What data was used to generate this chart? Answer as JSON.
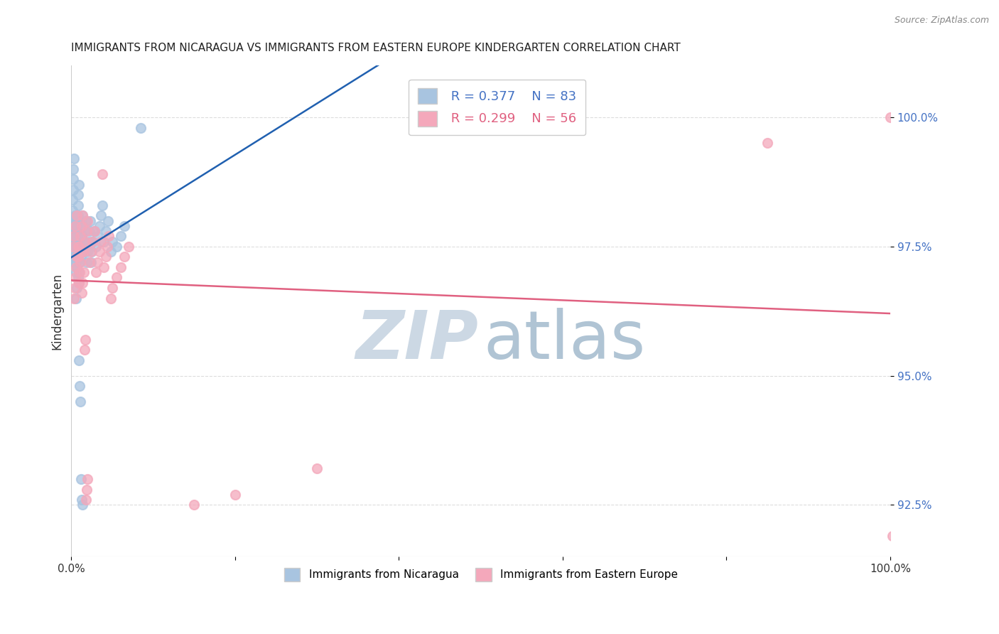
{
  "title": "IMMIGRANTS FROM NICARAGUA VS IMMIGRANTS FROM EASTERN EUROPE KINDERGARTEN CORRELATION CHART",
  "source": "Source: ZipAtlas.com",
  "ylabel": "Kindergarten",
  "ytick_vals": [
    92.5,
    95.0,
    97.5,
    100.0
  ],
  "xlim": [
    0.0,
    100.0
  ],
  "ylim": [
    91.5,
    101.0
  ],
  "blue_R": 0.377,
  "blue_N": 83,
  "pink_R": 0.299,
  "pink_N": 56,
  "blue_color": "#a8c4e0",
  "pink_color": "#f4a8bb",
  "blue_line_color": "#2060b0",
  "pink_line_color": "#e06080",
  "blue_legend_color": "#4472c4",
  "pink_legend_color": "#e06080",
  "watermark_zip_color": "#ccd8e4",
  "watermark_atlas_color": "#b0c4d4",
  "background_color": "#ffffff",
  "grid_color": "#dddddd",
  "blue_x": [
    0.05,
    0.08,
    0.1,
    0.12,
    0.15,
    0.18,
    0.2,
    0.22,
    0.25,
    0.28,
    0.3,
    0.32,
    0.35,
    0.38,
    0.4,
    0.42,
    0.45,
    0.48,
    0.5,
    0.52,
    0.55,
    0.58,
    0.6,
    0.62,
    0.65,
    0.68,
    0.7,
    0.72,
    0.75,
    0.78,
    0.8,
    0.82,
    0.85,
    0.88,
    0.9,
    0.92,
    0.95,
    0.98,
    1.0,
    1.05,
    1.1,
    1.15,
    1.2,
    1.25,
    1.3,
    1.35,
    1.4,
    1.5,
    1.6,
    1.7,
    1.8,
    1.9,
    2.0,
    2.1,
    2.2,
    2.3,
    2.4,
    2.5,
    2.6,
    2.8,
    3.0,
    3.2,
    3.4,
    3.6,
    3.8,
    4.0,
    4.2,
    4.5,
    4.8,
    5.0,
    5.5,
    6.0,
    6.5,
    0.6,
    0.7,
    0.8,
    0.9,
    1.0,
    8.5,
    1.1,
    1.2,
    1.3,
    1.4
  ],
  "blue_y": [
    97.4,
    97.6,
    97.8,
    98.0,
    98.2,
    98.4,
    98.6,
    98.8,
    99.0,
    99.2,
    97.2,
    97.4,
    97.6,
    97.8,
    98.0,
    97.3,
    97.5,
    97.7,
    97.9,
    98.1,
    97.0,
    97.2,
    97.4,
    97.6,
    97.8,
    98.0,
    97.1,
    97.3,
    97.5,
    97.7,
    97.9,
    98.1,
    98.3,
    98.5,
    98.7,
    96.8,
    97.0,
    97.2,
    97.4,
    97.6,
    97.8,
    98.0,
    97.3,
    97.5,
    97.7,
    97.9,
    98.1,
    97.4,
    97.6,
    97.8,
    98.0,
    97.2,
    97.4,
    97.6,
    97.8,
    98.0,
    97.2,
    97.4,
    97.6,
    97.8,
    97.5,
    97.7,
    97.9,
    98.1,
    98.3,
    97.6,
    97.8,
    98.0,
    97.4,
    97.6,
    97.5,
    97.7,
    97.9,
    96.5,
    96.7,
    96.9,
    95.3,
    94.8,
    99.8,
    94.5,
    93.0,
    92.6,
    92.5
  ],
  "pink_x": [
    0.2,
    0.35,
    0.5,
    0.65,
    0.8,
    0.95,
    1.1,
    1.25,
    1.4,
    1.55,
    1.7,
    1.85,
    2.0,
    2.2,
    2.4,
    2.6,
    2.8,
    3.0,
    3.2,
    3.4,
    3.6,
    3.8,
    4.0,
    4.2,
    4.4,
    4.6,
    4.8,
    5.0,
    5.5,
    6.0,
    6.5,
    7.0,
    0.3,
    0.4,
    0.5,
    0.6,
    0.7,
    0.8,
    0.9,
    1.0,
    1.1,
    1.2,
    1.3,
    1.4,
    1.5,
    1.6,
    1.7,
    1.8,
    1.9,
    2.0,
    15.0,
    20.0,
    30.0,
    85.0,
    100.0,
    100.3
  ],
  "pink_y": [
    97.5,
    97.7,
    97.9,
    98.1,
    97.3,
    97.5,
    97.7,
    97.9,
    98.1,
    97.4,
    97.6,
    97.8,
    98.0,
    97.2,
    97.4,
    97.6,
    97.8,
    97.0,
    97.2,
    97.4,
    97.6,
    98.9,
    97.1,
    97.3,
    97.5,
    97.7,
    96.5,
    96.7,
    96.9,
    97.1,
    97.3,
    97.5,
    96.5,
    96.7,
    96.9,
    97.1,
    97.3,
    97.5,
    96.8,
    97.0,
    97.2,
    97.4,
    96.6,
    96.8,
    97.0,
    95.5,
    95.7,
    92.6,
    92.8,
    93.0,
    92.5,
    92.7,
    93.2,
    99.5,
    100.0,
    91.9
  ]
}
